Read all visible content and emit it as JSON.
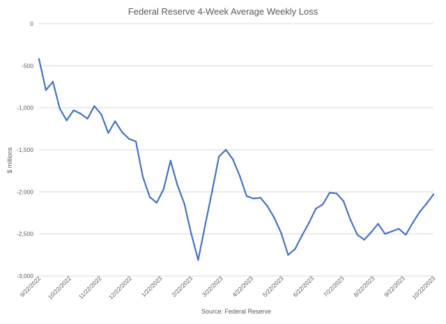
{
  "chart_data": {
    "type": "line",
    "title": "Federal Reserve 4-Week Average Weekly Loss",
    "xlabel": "",
    "ylabel": "$ millions",
    "source": "Source:  Federal Reserve",
    "ylim": [
      -3000,
      0
    ],
    "yticks": [
      0,
      -500,
      -1000,
      -1500,
      -2000,
      -2500,
      -3000
    ],
    "ytick_labels": [
      "0",
      "-500",
      "-1,000",
      "-1,500",
      "-2,000",
      "-2,500",
      "-3,000"
    ],
    "xtick_labels": [
      "9/22/2022",
      "10/22/2022",
      "11/22/2022",
      "12/22/2022",
      "1/22/2023",
      "2/22/2023",
      "3/22/2023",
      "4/22/2023",
      "5/22/2023",
      "6/22/2023",
      "7/22/2023",
      "8/22/2023",
      "9/22/2023",
      "10/22/2023"
    ],
    "grid": true,
    "legend": "none",
    "colors": {
      "line": "#4472c4",
      "grid": "#d9d9d9",
      "text": "#595959"
    },
    "series": [
      {
        "values": [
          -420,
          -790,
          -690,
          -1010,
          -1150,
          -1030,
          -1070,
          -1130,
          -980,
          -1080,
          -1300,
          -1160,
          -1290,
          -1370,
          -1400,
          -1820,
          -2060,
          -2130,
          -1970,
          -1630,
          -1920,
          -2140,
          -2500,
          -2810,
          -2400,
          -2000,
          -1580,
          -1500,
          -1610,
          -1810,
          -2050,
          -2080,
          -2070,
          -2170,
          -2310,
          -2490,
          -2750,
          -2680,
          -2520,
          -2370,
          -2200,
          -2150,
          -2010,
          -2020,
          -2110,
          -2330,
          -2510,
          -2570,
          -2480,
          -2380,
          -2500,
          -2470,
          -2440,
          -2510,
          -2370,
          -2240,
          -2140,
          -2030
        ]
      }
    ]
  }
}
